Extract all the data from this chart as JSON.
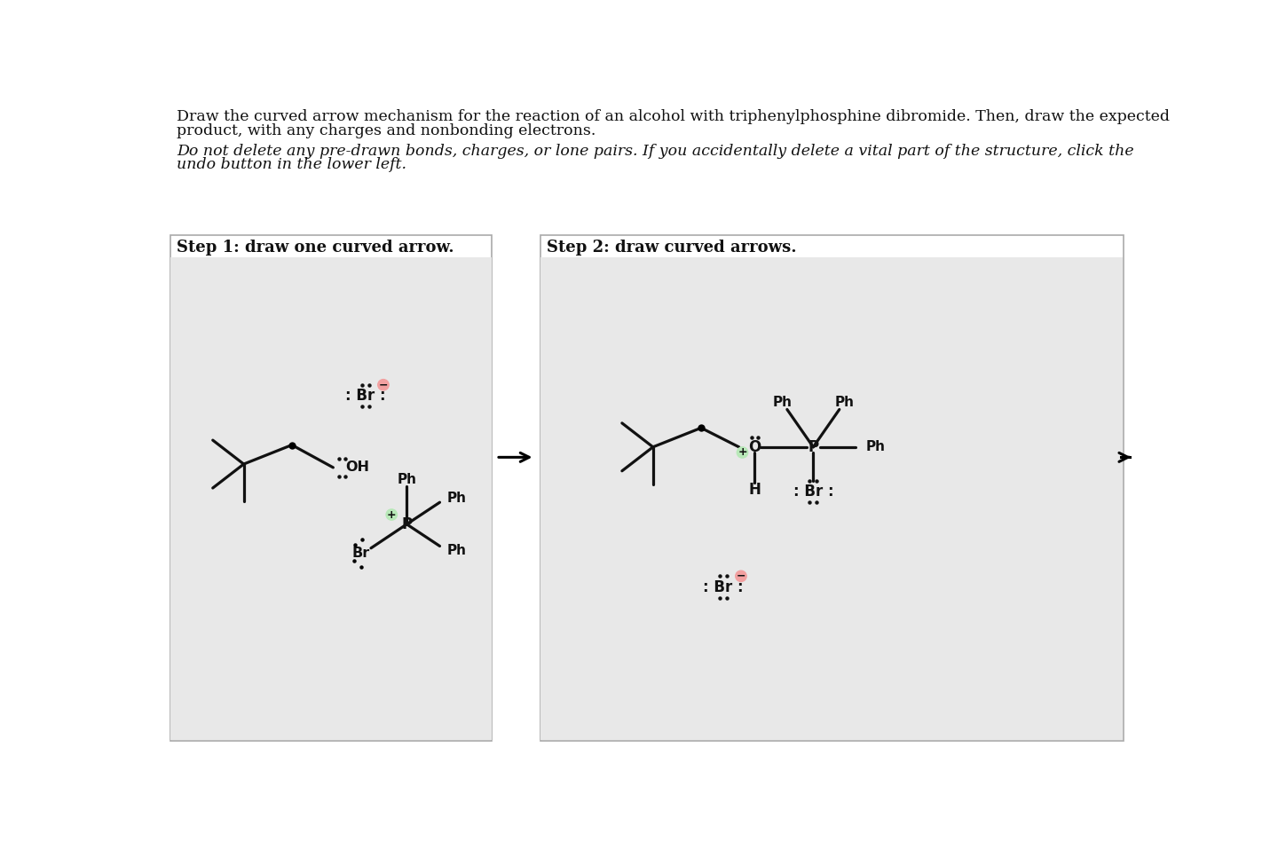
{
  "bg_color": "#ffffff",
  "panel_bg": "#e8e8e8",
  "panel_border": "#aaaaaa",
  "title_line1": "Draw the curved arrow mechanism for the reaction of an alcohol with triphenylphosphine dibromide. Then, draw the expected",
  "title_line2": "product, with any charges and nonbonding electrons.",
  "italic_line1": "Do not delete any pre-drawn bonds, charges, or lone pairs. If you accidentally delete a vital part of the structure, click the",
  "italic_line2": "undo button in the lower left.",
  "step1_label": "Step 1: draw one curved arrow.",
  "step2_label": "Step 2: draw curved arrows.",
  "pink_color": "#f2a0a0",
  "green_color": "#b8e8b8",
  "text_color": "#111111",
  "bond_color": "#111111"
}
